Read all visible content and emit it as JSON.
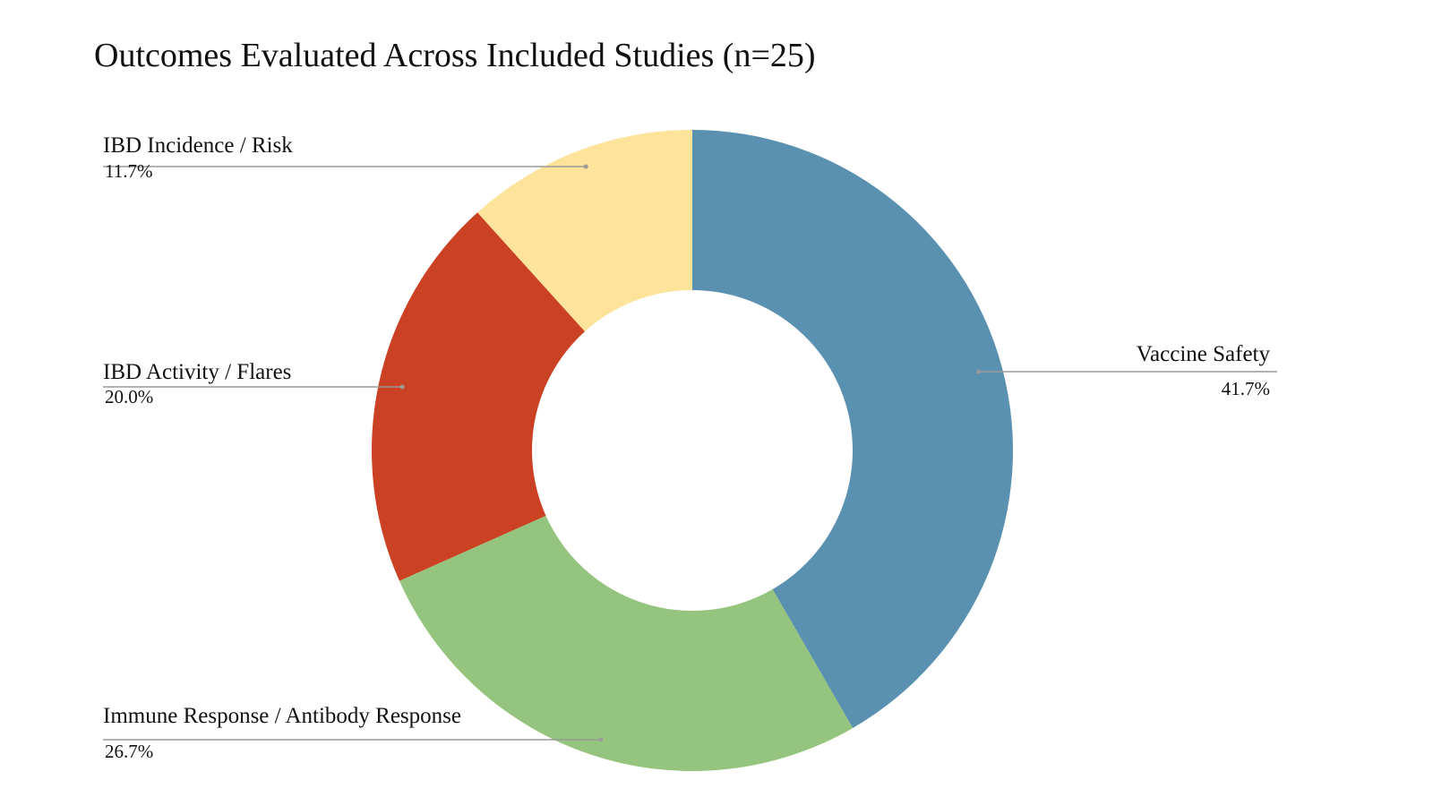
{
  "chart_data": {
    "type": "pie",
    "donut": true,
    "title": "Outcomes Evaluated Across Included Studies (n=25)",
    "slices": [
      {
        "label": "Vaccine Safety",
        "value": 41.7,
        "display": "41.7%",
        "color": "#5b91b0"
      },
      {
        "label": "Immune Response / Antibody Response",
        "value": 26.7,
        "display": "26.7%",
        "color": "#94c47d"
      },
      {
        "label": "IBD Activity / Flares",
        "value": 20.0,
        "display": "20.0%",
        "color": "#cb4124"
      },
      {
        "label": "IBD Incidence / Risk",
        "value": 11.7,
        "display": "11.7%",
        "color": "#fde49a"
      }
    ],
    "legend": "none",
    "start": "top",
    "direction": "clockwise"
  }
}
